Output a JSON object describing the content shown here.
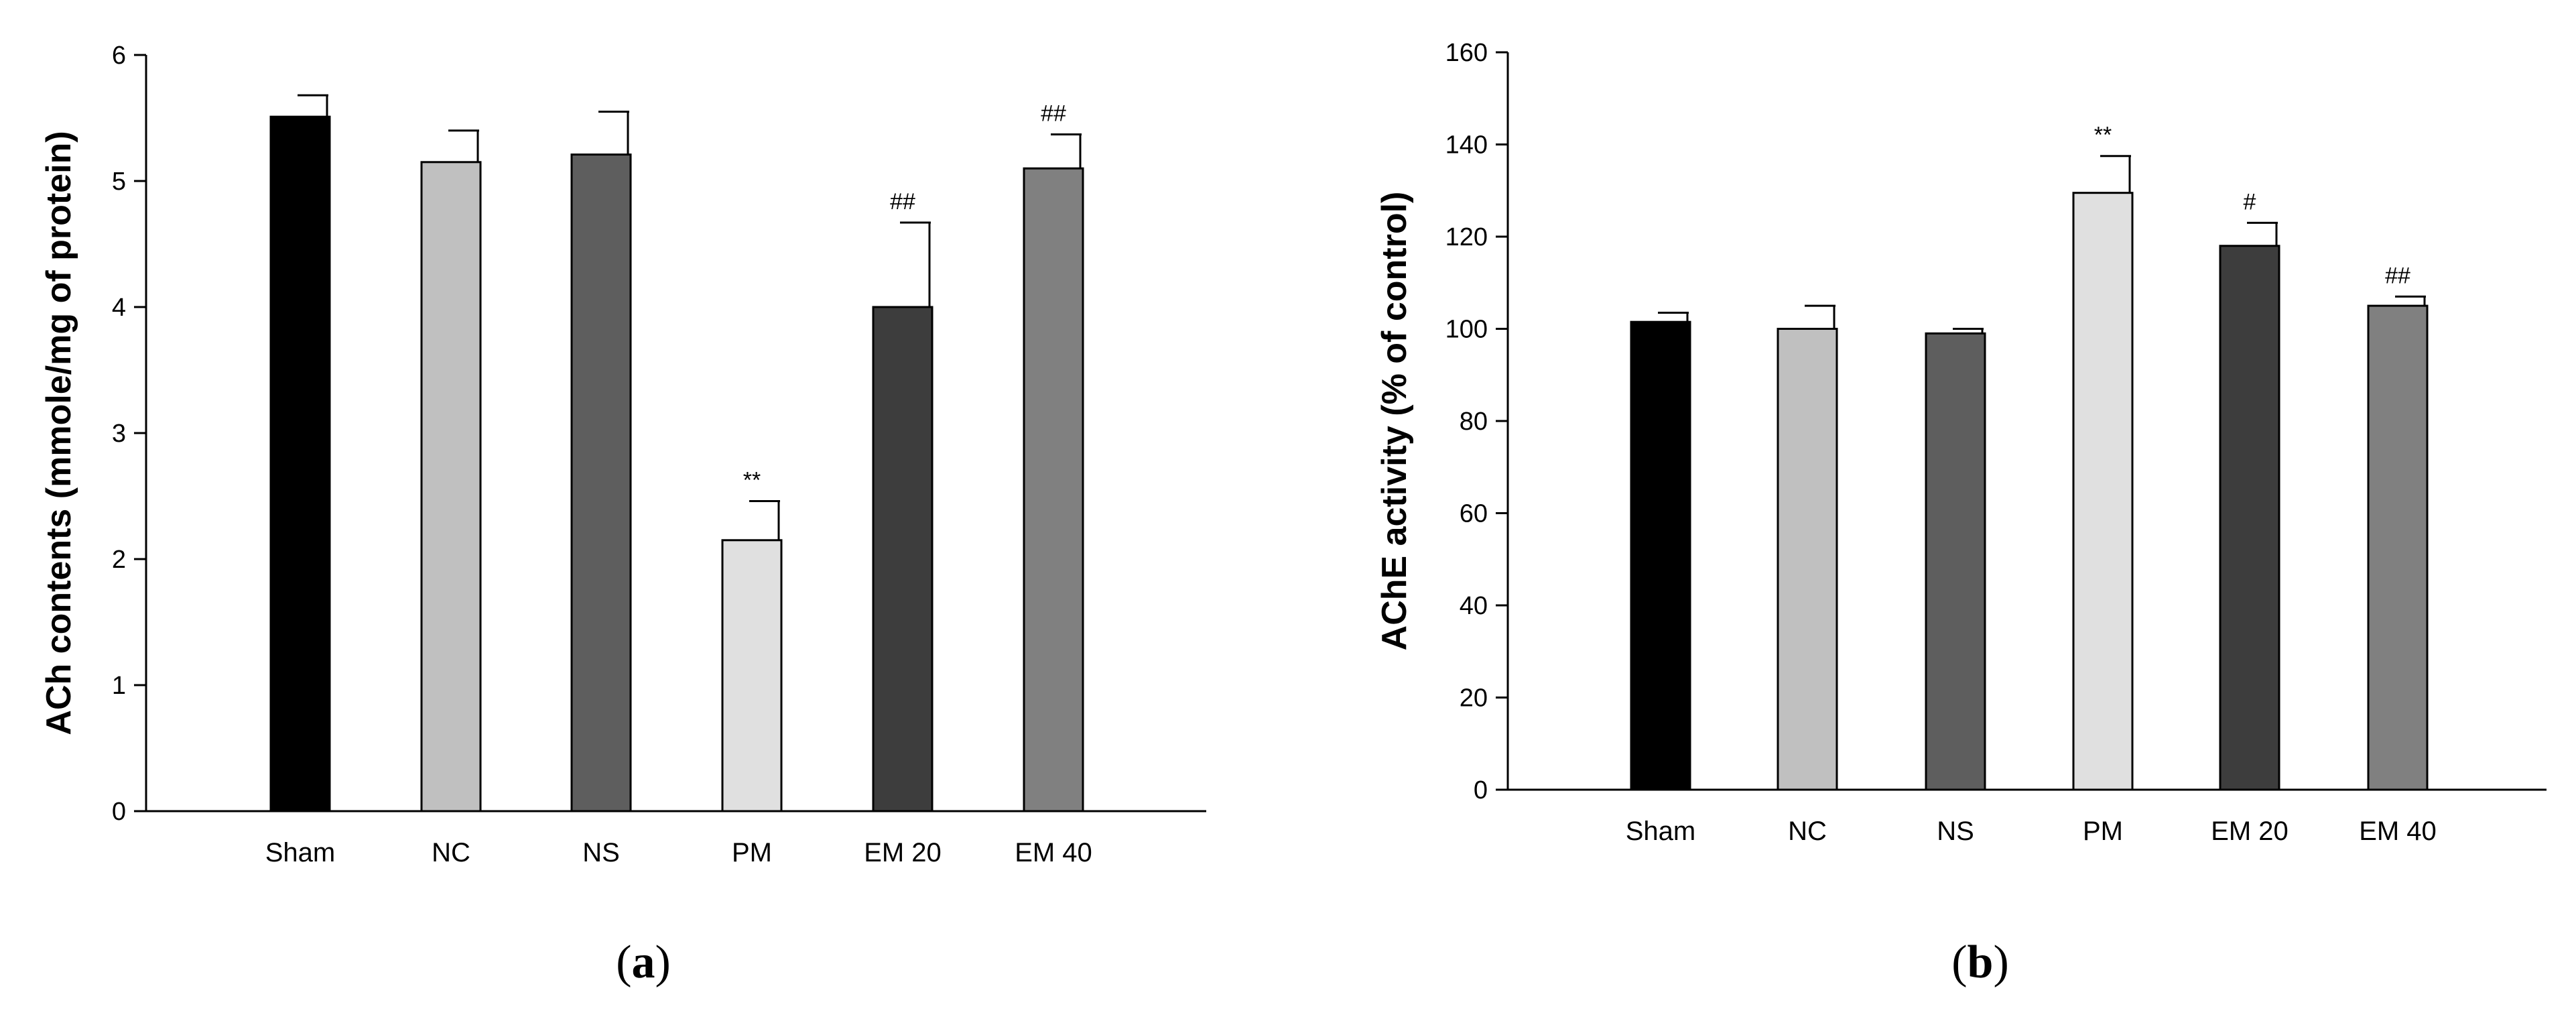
{
  "chart_data": [
    {
      "type": "bar",
      "panel_label": "a",
      "title": "",
      "xlabel": "",
      "ylabel": "ACh contents (mmole/mg of protein)",
      "ylim": [
        0,
        6
      ],
      "yticks": [
        0,
        1,
        2,
        3,
        4,
        5,
        6
      ],
      "categories": [
        "Sham",
        "NC",
        "NS",
        "PM",
        "EM 20",
        "EM 40"
      ],
      "values": [
        5.51,
        5.15,
        5.21,
        2.15,
        4.0,
        5.1
      ],
      "errors": [
        0.17,
        0.25,
        0.34,
        0.31,
        0.67,
        0.27
      ],
      "annotations": [
        "",
        "",
        "",
        "**",
        "##",
        "##"
      ],
      "colors": [
        "#000000",
        "#c0c0c0",
        "#5e5e5e",
        "#e0e0e0",
        "#3d3d3d",
        "#808080"
      ],
      "grid": false,
      "legend": "none"
    },
    {
      "type": "bar",
      "panel_label": "b",
      "title": "",
      "xlabel": "",
      "ylabel": "AChE activity (% of control)",
      "ylim": [
        0,
        160
      ],
      "yticks": [
        0,
        20,
        40,
        60,
        80,
        100,
        120,
        140,
        160
      ],
      "categories": [
        "Sham",
        "NC",
        "NS",
        "PM",
        "EM 20",
        "EM 40"
      ],
      "values": [
        101.5,
        100.0,
        99.0,
        129.5,
        118.0,
        105.0
      ],
      "errors": [
        2.0,
        5.0,
        1.0,
        8.0,
        5.0,
        2.0
      ],
      "annotations": [
        "",
        "",
        "",
        "**",
        "#",
        "##"
      ],
      "colors": [
        "#000000",
        "#c0c0c0",
        "#5e5e5e",
        "#e0e0e0",
        "#3d3d3d",
        "#808080"
      ],
      "grid": false,
      "legend": "none"
    }
  ]
}
